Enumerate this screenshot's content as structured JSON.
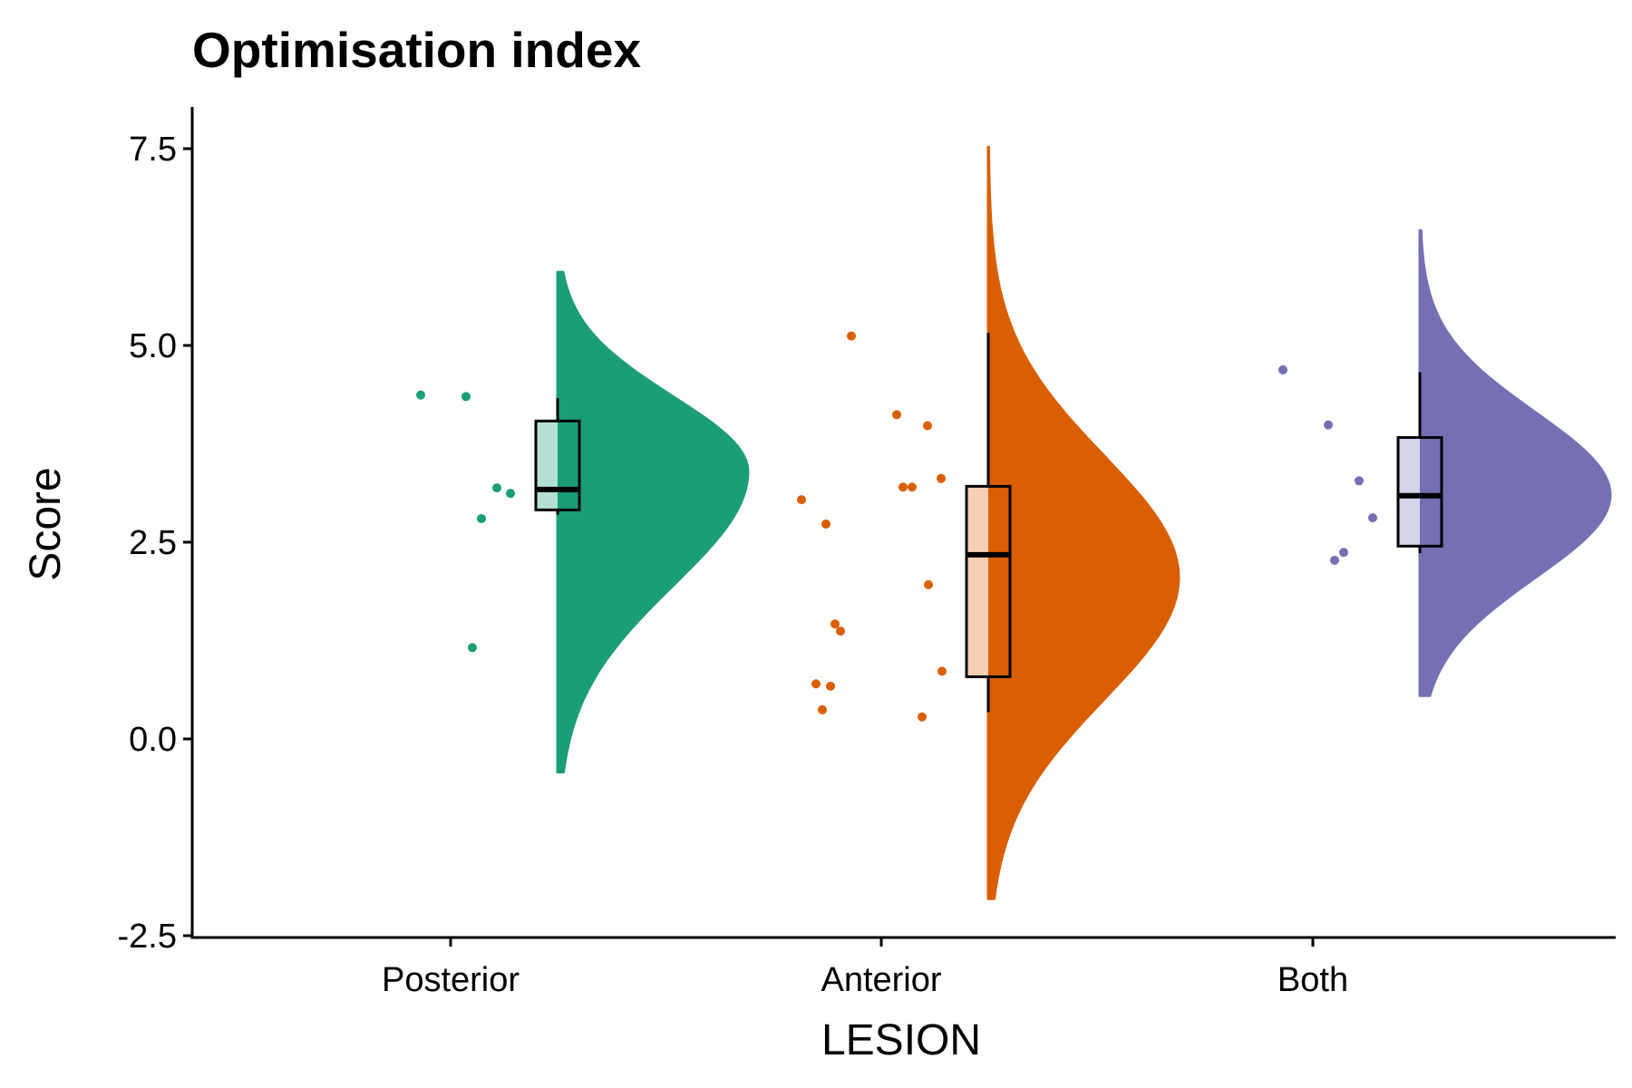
{
  "chart_data": {
    "type": "raincloud",
    "title": "Optimisation index",
    "xlabel": "LESION",
    "ylabel": "Score",
    "ylim": [
      -2.5,
      8.0
    ],
    "yticks": [
      -2.5,
      0.0,
      2.5,
      5.0,
      7.5
    ],
    "ytick_labels": [
      "-2.5",
      "0.0",
      "2.5",
      "5.0",
      "7.5"
    ],
    "categories": [
      "Posterior",
      "Anterior",
      "Both"
    ],
    "grid": false,
    "legend": "none",
    "groups": [
      {
        "category": "Posterior",
        "color": "#1b9e77",
        "box_fill": "#b3e0d3",
        "points": [
          4.37,
          4.35,
          3.19,
          3.12,
          2.8,
          1.16
        ],
        "box": {
          "whisker_low": 2.85,
          "q1": 2.91,
          "median": 3.17,
          "q3": 4.04,
          "whisker_high": 4.33
        },
        "density": {
          "min": -0.42,
          "max": 5.93,
          "peak": 3.4,
          "peak_width": 0.36,
          "sd_low": 1.45,
          "sd_high": 0.95
        }
      },
      {
        "category": "Anterior",
        "color": "#d95f02",
        "box_fill": "#f7d0b3",
        "points": [
          5.12,
          4.12,
          3.98,
          3.31,
          3.2,
          3.2,
          3.04,
          2.73,
          1.96,
          1.46,
          1.37,
          0.86,
          0.7,
          0.67,
          0.37,
          0.28
        ],
        "box": {
          "whisker_low": 0.34,
          "q1": 0.79,
          "median": 2.34,
          "q3": 3.21,
          "whisker_high": 5.16
        },
        "density": {
          "min": -2.03,
          "max": 7.52,
          "peak": 2.05,
          "peak_width": 0.49,
          "sd_low": 1.55,
          "sd_high": 1.55
        }
      },
      {
        "category": "Both",
        "color": "#7570b3",
        "box_fill": "#d6d4e8",
        "points": [
          4.69,
          3.99,
          3.28,
          2.81,
          2.37,
          2.27
        ],
        "box": {
          "whisker_low": 2.36,
          "q1": 2.45,
          "median": 3.09,
          "q3": 3.83,
          "whisker_high": 4.66
        },
        "density": {
          "min": 0.55,
          "max": 6.46,
          "peak": 3.1,
          "peak_width": 0.34,
          "sd_low": 1.05,
          "sd_high": 1.05
        }
      }
    ]
  }
}
